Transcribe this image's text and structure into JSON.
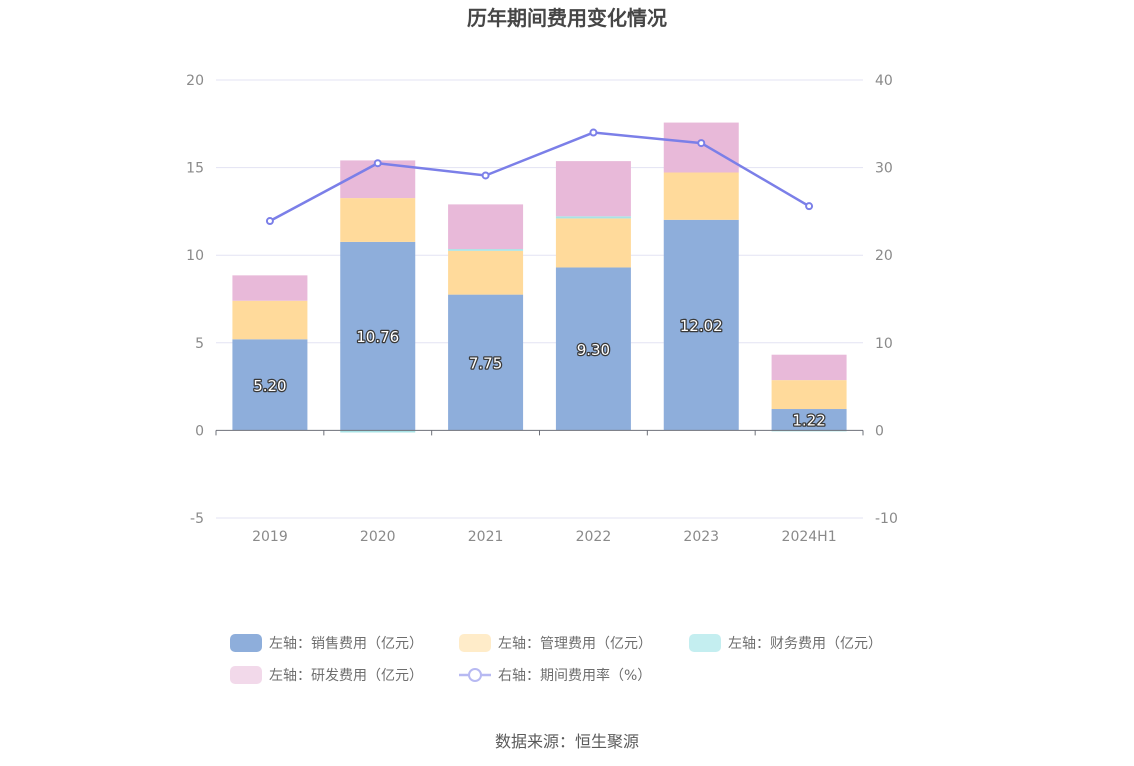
{
  "chart_data": {
    "type": "bar",
    "title": "历年期间费用变化情况",
    "categories": [
      "2019",
      "2020",
      "2021",
      "2022",
      "2023",
      "2024H1"
    ],
    "series": [
      {
        "name": "左轴：销售费用（亿元）",
        "type": "bar",
        "axis": "left",
        "stack": "total",
        "color": "#8eaedb",
        "values": [
          5.2,
          10.76,
          7.75,
          9.3,
          12.02,
          1.22
        ],
        "labels": [
          "5.20",
          "10.76",
          "7.75",
          "9.30",
          "12.02",
          "1.22"
        ]
      },
      {
        "name": "左轴：管理费用（亿元）",
        "type": "bar",
        "axis": "left",
        "stack": "total",
        "color": "#ffda9b",
        "values": [
          2.2,
          2.5,
          2.5,
          2.8,
          2.7,
          1.65
        ]
      },
      {
        "name": "左轴：财务费用（亿元）",
        "type": "bar",
        "axis": "left",
        "stack": "total",
        "color": "#a8e3e6",
        "values": [
          0.0,
          -0.12,
          0.1,
          0.12,
          0.0,
          -0.05
        ]
      },
      {
        "name": "左轴：研发费用（亿元）",
        "type": "bar",
        "axis": "left",
        "stack": "total",
        "color": "#e8b9d9",
        "values": [
          1.45,
          2.15,
          2.55,
          3.15,
          2.85,
          1.45
        ]
      },
      {
        "name": "右轴：期间费用率（%）",
        "type": "line",
        "axis": "right",
        "color": "#7b7fe8",
        "values": [
          23.9,
          30.5,
          29.1,
          34.0,
          32.8,
          25.6
        ]
      }
    ],
    "left_axis": {
      "ylim": [
        -5,
        20
      ],
      "ticks": [
        "-5",
        "0",
        "5",
        "10",
        "15",
        "20"
      ],
      "tick_values": [
        -5,
        0,
        5,
        10,
        15,
        20
      ]
    },
    "right_axis": {
      "ylim": [
        -10,
        40
      ],
      "ticks": [
        "-10",
        "0",
        "10",
        "20",
        "30",
        "40"
      ],
      "tick_values": [
        -10,
        0,
        10,
        20,
        30,
        40
      ]
    },
    "grid": true,
    "legend_position": "bottom",
    "source": "数据来源：恒生聚源"
  }
}
